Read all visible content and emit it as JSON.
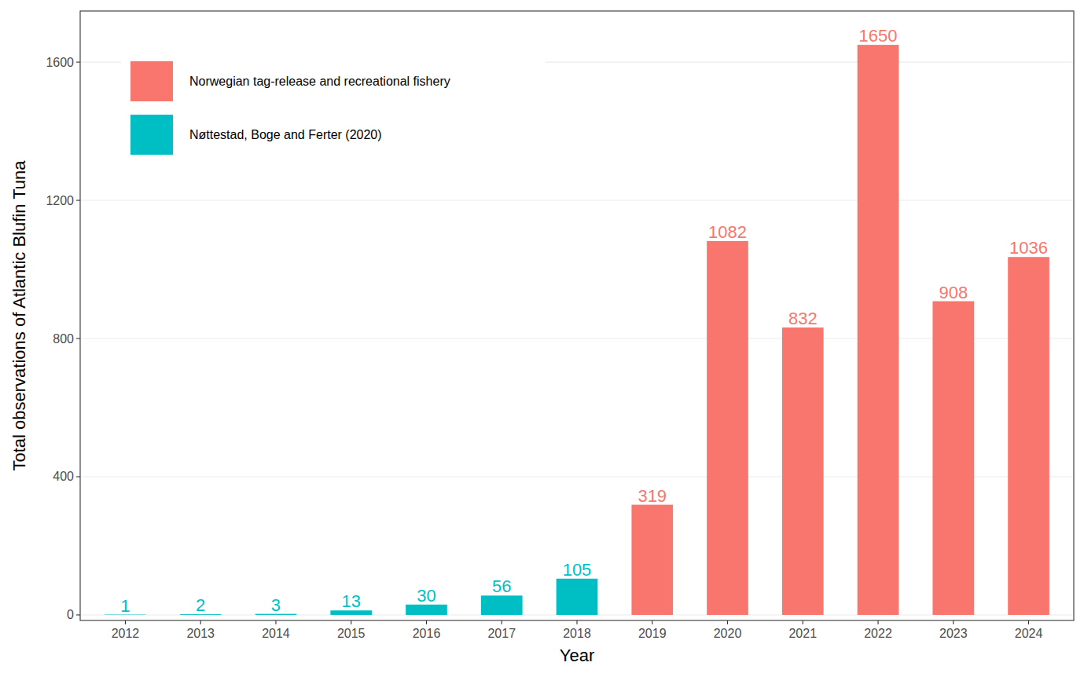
{
  "chart_data": {
    "type": "bar",
    "x_label": "Year",
    "y_label": "Total observations of Atlantic Blufin Tuna",
    "categories": [
      "2012",
      "2013",
      "2014",
      "2015",
      "2016",
      "2017",
      "2018",
      "2019",
      "2020",
      "2021",
      "2022",
      "2023",
      "2024"
    ],
    "series": [
      {
        "name": "Norwegian tag-release and recreational fishery",
        "color": "#F8766D",
        "values": [
          null,
          null,
          null,
          null,
          null,
          null,
          null,
          319,
          1082,
          832,
          1650,
          908,
          1036
        ]
      },
      {
        "name": "Nøttestad, Boge and Ferter (2020)",
        "color": "#00BFC4",
        "values": [
          1,
          2,
          3,
          13,
          30,
          56,
          105,
          null,
          null,
          null,
          null,
          null,
          null
        ]
      }
    ],
    "ylim": [
      -16,
      1748
    ],
    "yticks": [
      0,
      400,
      800,
      1200,
      1600
    ],
    "grid": true,
    "legend": "top-left",
    "data_labels": true
  }
}
